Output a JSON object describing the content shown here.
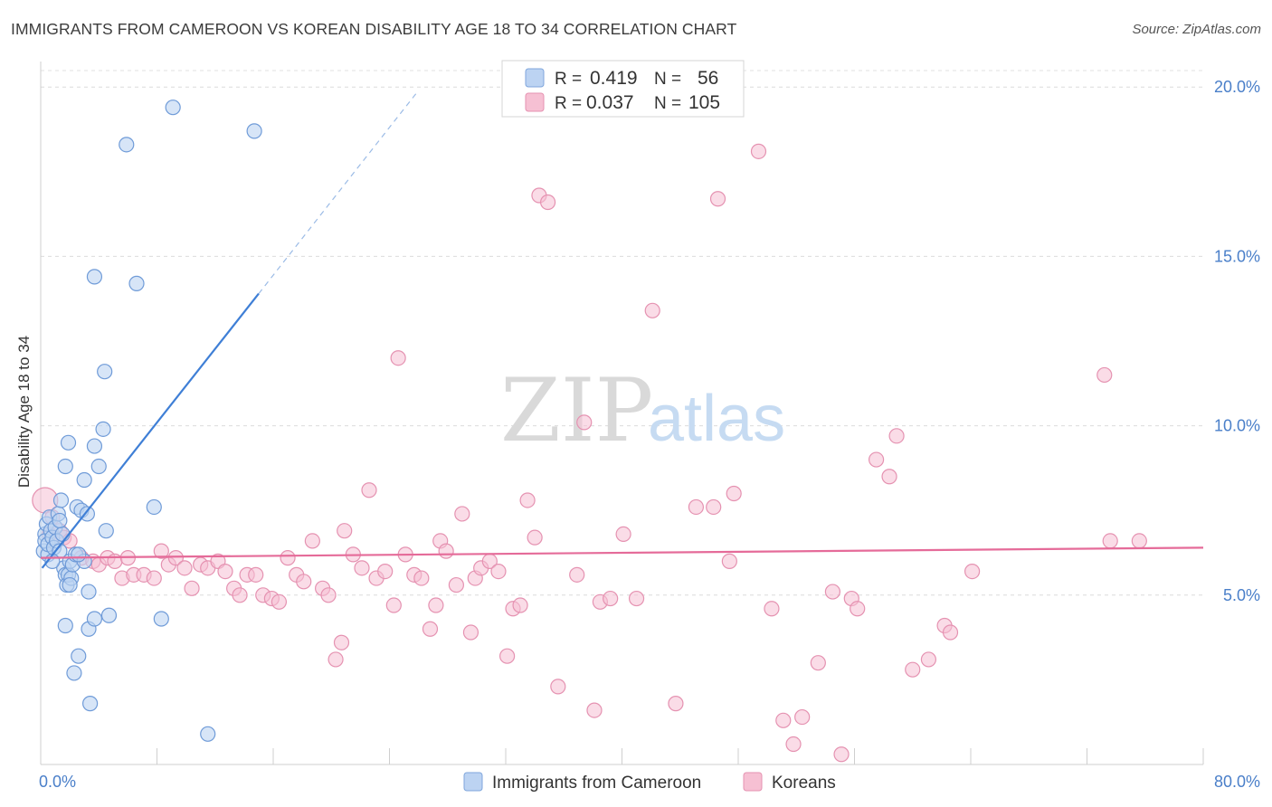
{
  "title": "IMMIGRANTS FROM CAMEROON VS KOREAN DISABILITY AGE 18 TO 34 CORRELATION CHART",
  "source": "Source: ZipAtlas.com",
  "watermark": {
    "zip": "ZIP",
    "atlas": "atlas"
  },
  "legend_top": {
    "rows": [
      {
        "r_label": "R =",
        "r_value": "0.419",
        "n_label": "N =",
        "n_value": "56"
      },
      {
        "r_label": "R =",
        "r_value": "0.037",
        "n_label": "N =",
        "n_value": "105"
      }
    ]
  },
  "legend_bottom": {
    "items": [
      {
        "label": "Immigrants from Cameroon"
      },
      {
        "label": "Koreans"
      }
    ]
  },
  "colors": {
    "blue": "#3f7fd6",
    "blue_fill": "#bcd3f2",
    "pink": "#e56b99",
    "pink_fill": "#f6c0d3",
    "tick_label": "#4a7fc9"
  },
  "chart_data": {
    "type": "scatter",
    "xlabel": "",
    "ylabel": "Disability Age 18 to 34",
    "xlim": [
      0,
      80
    ],
    "ylim": [
      0,
      20.7
    ],
    "x_tick_labels": [
      "0.0%",
      "80.0%"
    ],
    "y_ticks": [
      5,
      10,
      15,
      20
    ],
    "y_tick_labels": [
      "5.0%",
      "10.0%",
      "15.0%",
      "20.0%"
    ],
    "grid": true,
    "series": [
      {
        "name": "Immigrants from Cameroon",
        "r": 0.419,
        "n": 56,
        "trend": {
          "x0": 0.1,
          "y0": 5.8,
          "x1": 15.0,
          "y1": 13.9,
          "dash_to_x": 26.0,
          "dash_to_y": 19.9
        },
        "points": [
          [
            0.2,
            6.3
          ],
          [
            0.3,
            6.8
          ],
          [
            0.3,
            6.6
          ],
          [
            0.4,
            7.1
          ],
          [
            0.5,
            6.2
          ],
          [
            0.5,
            6.5
          ],
          [
            0.6,
            7.3
          ],
          [
            0.7,
            6.9
          ],
          [
            0.8,
            6.7
          ],
          [
            0.9,
            6.4
          ],
          [
            1.0,
            7.0
          ],
          [
            1.1,
            6.6
          ],
          [
            1.2,
            7.4
          ],
          [
            1.3,
            6.3
          ],
          [
            1.4,
            7.8
          ],
          [
            1.5,
            6.8
          ],
          [
            1.6,
            5.8
          ],
          [
            1.7,
            5.6
          ],
          [
            1.8,
            5.3
          ],
          [
            1.9,
            5.6
          ],
          [
            2.0,
            6.0
          ],
          [
            2.1,
            5.5
          ],
          [
            2.2,
            5.9
          ],
          [
            2.4,
            6.2
          ],
          [
            2.5,
            7.6
          ],
          [
            2.8,
            7.5
          ],
          [
            3.0,
            6.0
          ],
          [
            3.0,
            8.4
          ],
          [
            3.2,
            7.4
          ],
          [
            3.3,
            5.1
          ],
          [
            1.7,
            8.8
          ],
          [
            1.9,
            9.5
          ],
          [
            3.7,
            9.4
          ],
          [
            4.0,
            8.8
          ],
          [
            4.3,
            9.9
          ],
          [
            4.4,
            11.6
          ],
          [
            3.7,
            14.4
          ],
          [
            6.6,
            14.2
          ],
          [
            5.9,
            18.3
          ],
          [
            9.1,
            19.4
          ],
          [
            14.7,
            18.7
          ],
          [
            4.5,
            6.9
          ],
          [
            7.8,
            7.6
          ],
          [
            1.7,
            4.1
          ],
          [
            3.3,
            4.0
          ],
          [
            3.7,
            4.3
          ],
          [
            4.7,
            4.4
          ],
          [
            8.3,
            4.3
          ],
          [
            2.6,
            3.2
          ],
          [
            2.3,
            2.7
          ],
          [
            3.4,
            1.8
          ],
          [
            11.5,
            0.9
          ],
          [
            2.6,
            6.2
          ],
          [
            0.8,
            6.0
          ],
          [
            1.3,
            7.2
          ],
          [
            2.0,
            5.3
          ]
        ]
      },
      {
        "name": "Koreans",
        "r": 0.037,
        "n": 105,
        "trend": {
          "x0": 0,
          "y0": 6.1,
          "x1": 80,
          "y1": 6.4
        },
        "points": [
          [
            0.3,
            7.8
          ],
          [
            0.6,
            6.8
          ],
          [
            0.8,
            7.3
          ],
          [
            1.3,
            6.9
          ],
          [
            1.6,
            6.7
          ],
          [
            2.0,
            6.6
          ],
          [
            2.8,
            6.1
          ],
          [
            3.6,
            6.0
          ],
          [
            4.0,
            5.9
          ],
          [
            4.6,
            6.1
          ],
          [
            5.1,
            6.0
          ],
          [
            5.6,
            5.5
          ],
          [
            6.0,
            6.1
          ],
          [
            6.4,
            5.6
          ],
          [
            7.1,
            5.6
          ],
          [
            7.8,
            5.5
          ],
          [
            8.3,
            6.3
          ],
          [
            8.8,
            5.9
          ],
          [
            9.3,
            6.1
          ],
          [
            9.9,
            5.8
          ],
          [
            10.4,
            5.2
          ],
          [
            11.0,
            5.9
          ],
          [
            11.5,
            5.8
          ],
          [
            12.2,
            6.0
          ],
          [
            12.7,
            5.7
          ],
          [
            13.3,
            5.2
          ],
          [
            13.7,
            5.0
          ],
          [
            14.2,
            5.6
          ],
          [
            14.8,
            5.6
          ],
          [
            15.3,
            5.0
          ],
          [
            15.9,
            4.9
          ],
          [
            16.4,
            4.8
          ],
          [
            17.0,
            6.1
          ],
          [
            17.6,
            5.6
          ],
          [
            18.1,
            5.4
          ],
          [
            18.7,
            6.6
          ],
          [
            19.4,
            5.2
          ],
          [
            19.8,
            5.0
          ],
          [
            20.7,
            3.6
          ],
          [
            20.3,
            3.1
          ],
          [
            20.9,
            6.9
          ],
          [
            21.5,
            6.2
          ],
          [
            22.1,
            5.8
          ],
          [
            22.6,
            8.1
          ],
          [
            23.1,
            5.5
          ],
          [
            23.7,
            5.7
          ],
          [
            24.3,
            4.7
          ],
          [
            24.6,
            12.0
          ],
          [
            25.1,
            6.2
          ],
          [
            25.7,
            5.6
          ],
          [
            26.2,
            5.5
          ],
          [
            26.8,
            4.0
          ],
          [
            27.2,
            4.7
          ],
          [
            27.5,
            6.6
          ],
          [
            27.9,
            6.3
          ],
          [
            28.6,
            5.3
          ],
          [
            29.0,
            7.4
          ],
          [
            29.6,
            3.9
          ],
          [
            29.9,
            5.5
          ],
          [
            30.3,
            5.8
          ],
          [
            30.9,
            6.0
          ],
          [
            31.5,
            5.7
          ],
          [
            32.1,
            3.2
          ],
          [
            32.5,
            4.6
          ],
          [
            33.0,
            4.7
          ],
          [
            33.5,
            7.8
          ],
          [
            34.0,
            6.7
          ],
          [
            34.3,
            16.8
          ],
          [
            34.9,
            16.6
          ],
          [
            35.6,
            2.3
          ],
          [
            36.9,
            5.6
          ],
          [
            37.4,
            10.1
          ],
          [
            38.1,
            1.6
          ],
          [
            38.5,
            4.8
          ],
          [
            39.2,
            4.9
          ],
          [
            40.1,
            6.8
          ],
          [
            41.0,
            4.9
          ],
          [
            42.1,
            13.4
          ],
          [
            43.7,
            1.8
          ],
          [
            45.1,
            7.6
          ],
          [
            46.3,
            7.6
          ],
          [
            46.6,
            16.7
          ],
          [
            47.4,
            6.0
          ],
          [
            47.7,
            8.0
          ],
          [
            49.4,
            18.1
          ],
          [
            50.3,
            4.6
          ],
          [
            51.1,
            1.3
          ],
          [
            52.4,
            1.4
          ],
          [
            51.8,
            0.6
          ],
          [
            53.5,
            3.0
          ],
          [
            54.5,
            5.1
          ],
          [
            55.1,
            0.3
          ],
          [
            55.8,
            4.9
          ],
          [
            56.2,
            4.6
          ],
          [
            57.5,
            9.0
          ],
          [
            58.4,
            8.5
          ],
          [
            58.9,
            9.7
          ],
          [
            60.0,
            2.8
          ],
          [
            61.1,
            3.1
          ],
          [
            62.2,
            4.1
          ],
          [
            62.6,
            3.9
          ],
          [
            64.1,
            5.7
          ],
          [
            73.2,
            11.5
          ],
          [
            73.6,
            6.6
          ],
          [
            75.6,
            6.6
          ]
        ]
      }
    ]
  }
}
